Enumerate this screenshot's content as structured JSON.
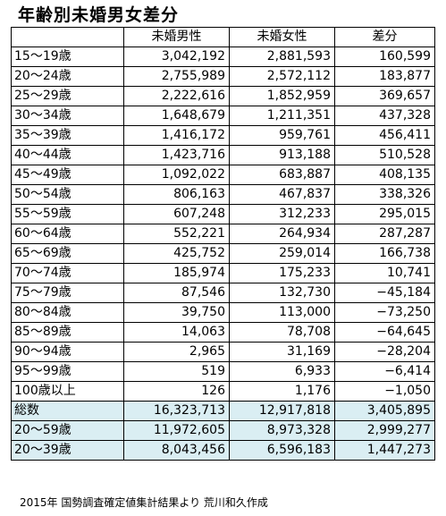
{
  "title": "年齢別未婚男女差分",
  "footer": "2015年 国勢調査確定値集計結果より 荒川和久作成",
  "chart_data": {
    "type": "table",
    "columns": [
      "",
      "未婚男性",
      "未婚女性",
      "差分"
    ],
    "rows": [
      {
        "label": "15～19歳",
        "male": "3,042,192",
        "female": "2,881,593",
        "diff": "160,599"
      },
      {
        "label": "20～24歳",
        "male": "2,755,989",
        "female": "2,572,112",
        "diff": "183,877"
      },
      {
        "label": "25～29歳",
        "male": "2,222,616",
        "female": "1,852,959",
        "diff": "369,657"
      },
      {
        "label": "30～34歳",
        "male": "1,648,679",
        "female": "1,211,351",
        "diff": "437,328"
      },
      {
        "label": "35～39歳",
        "male": "1,416,172",
        "female": "959,761",
        "diff": "456,411"
      },
      {
        "label": "40～44歳",
        "male": "1,423,716",
        "female": "913,188",
        "diff": "510,528"
      },
      {
        "label": "45～49歳",
        "male": "1,092,022",
        "female": "683,887",
        "diff": "408,135"
      },
      {
        "label": "50～54歳",
        "male": "806,163",
        "female": "467,837",
        "diff": "338,326"
      },
      {
        "label": "55～59歳",
        "male": "607,248",
        "female": "312,233",
        "diff": "295,015"
      },
      {
        "label": "60～64歳",
        "male": "552,221",
        "female": "264,934",
        "diff": "287,287"
      },
      {
        "label": "65～69歳",
        "male": "425,752",
        "female": "259,014",
        "diff": "166,738"
      },
      {
        "label": "70～74歳",
        "male": "185,974",
        "female": "175,233",
        "diff": "10,741"
      },
      {
        "label": "75～79歳",
        "male": "87,546",
        "female": "132,730",
        "diff": "−45,184"
      },
      {
        "label": "80～84歳",
        "male": "39,750",
        "female": "113,000",
        "diff": "−73,250"
      },
      {
        "label": "85～89歳",
        "male": "14,063",
        "female": "78,708",
        "diff": "−64,645"
      },
      {
        "label": "90～94歳",
        "male": "2,965",
        "female": "31,169",
        "diff": "−28,204"
      },
      {
        "label": "95～99歳",
        "male": "519",
        "female": "6,933",
        "diff": "−6,414"
      },
      {
        "label": "100歳以上",
        "male": "126",
        "female": "1,176",
        "diff": "−1,050"
      }
    ],
    "summary_rows": [
      {
        "label": "総数",
        "male": "16,323,713",
        "female": "12,917,818",
        "diff": "3,405,895"
      },
      {
        "label": "20～59歳",
        "male": "11,972,605",
        "female": "8,973,328",
        "diff": "2,999,277"
      },
      {
        "label": "20～39歳",
        "male": "8,043,456",
        "female": "6,596,183",
        "diff": "1,447,273"
      }
    ],
    "summary_color": "#daeef3"
  }
}
